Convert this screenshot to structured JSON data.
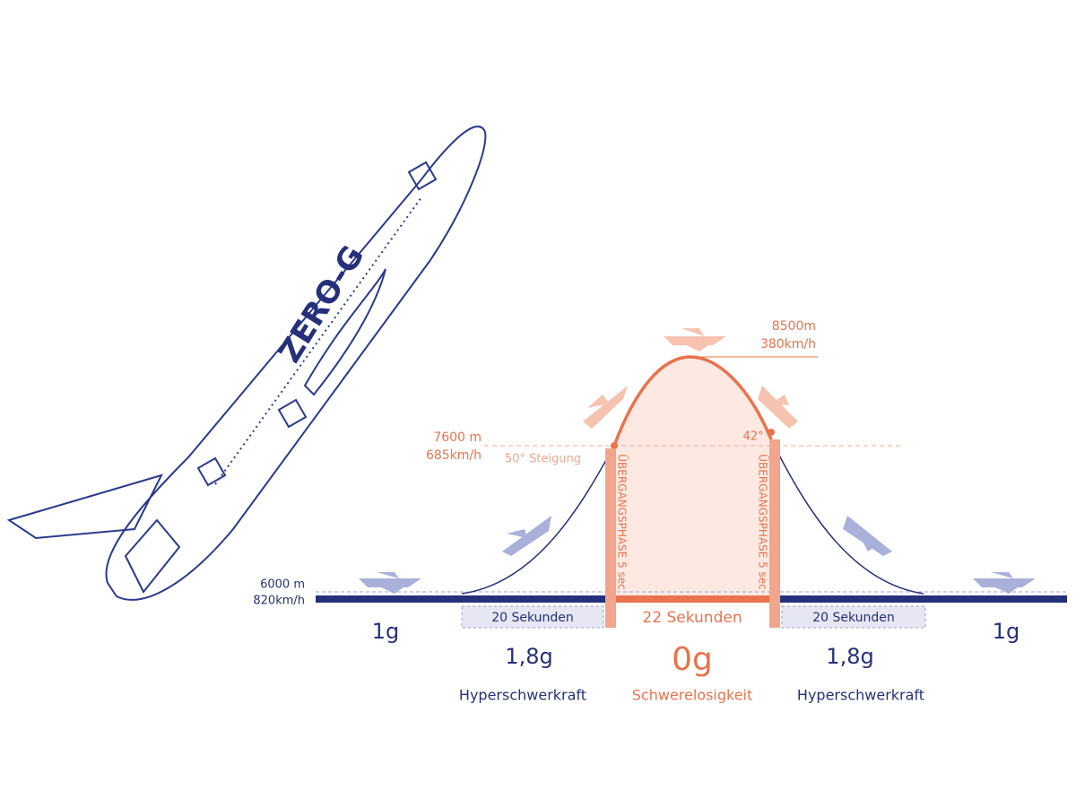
{
  "plane_label": "ZERO-G",
  "apex": {
    "altitude": "8500m",
    "speed": "380km/h"
  },
  "entry": {
    "altitude": "7600 m",
    "speed": "685km/h",
    "angle": "50° Steigung"
  },
  "exit": {
    "angle": "42°"
  },
  "base": {
    "altitude": "6000 m",
    "speed": "820km/h"
  },
  "transitions": [
    "ÜBERGANGSPHASE 5 sec",
    "ÜBERGANGSPHASE 5 sec"
  ],
  "phases": [
    {
      "g": "1g"
    },
    {
      "duration": "20 Sekunden",
      "g": "1,8g",
      "label": "Hyperschwerkraft"
    },
    {
      "duration": "22 Sekunden",
      "g": "0g",
      "label": "Schwerelosigkeit"
    },
    {
      "duration": "20 Sekunden",
      "g": "1,8g",
      "label": "Hyperschwerkraft"
    },
    {
      "g": "1g"
    }
  ]
}
